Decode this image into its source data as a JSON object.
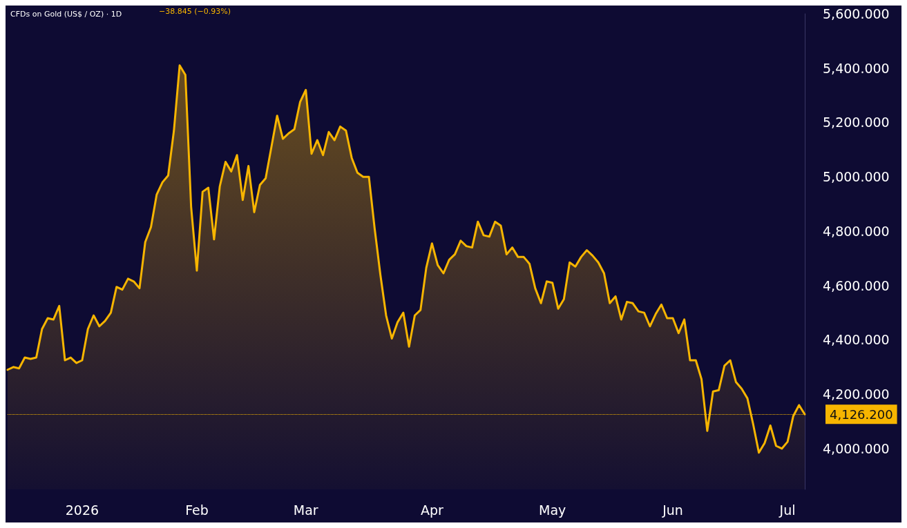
{
  "chart_data": {
    "type": "area",
    "title": "CFDs on Gold (US$ / OZ) · 1D",
    "annotations": [
      "−38.845 (−0.93%)"
    ],
    "categories": [
      null,
      null,
      null,
      null,
      null,
      null,
      null,
      null,
      null,
      null,
      null,
      null,
      null,
      "2026",
      null,
      null,
      null,
      null,
      null,
      null,
      null,
      null,
      null,
      null,
      null,
      null,
      null,
      null,
      null,
      null,
      null,
      null,
      null,
      "Feb",
      null,
      null,
      null,
      null,
      null,
      null,
      null,
      null,
      null,
      null,
      null,
      null,
      null,
      null,
      null,
      null,
      null,
      null,
      "Mar",
      null,
      null,
      null,
      null,
      null,
      null,
      null,
      null,
      null,
      null,
      null,
      null,
      null,
      null,
      null,
      null,
      null,
      null,
      null,
      null,
      null,
      "Apr",
      null,
      null,
      null,
      null,
      null,
      null,
      null,
      null,
      null,
      null,
      null,
      null,
      null,
      null,
      null,
      null,
      null,
      null,
      null,
      null,
      "May",
      null,
      null,
      null,
      null,
      null,
      null,
      null,
      null,
      null,
      null,
      null,
      null,
      null,
      null,
      null,
      null,
      null,
      null,
      null,
      null,
      "Jun",
      null,
      null,
      null,
      null,
      null,
      null,
      null,
      null,
      null,
      null,
      null,
      null,
      null,
      null,
      null,
      null,
      null,
      null,
      null,
      "Jul",
      null,
      null,
      null
    ],
    "series": [
      {
        "color": "#f7b500",
        "values": [
          4290,
          4300,
          4295,
          4335,
          4330,
          4335,
          4440,
          4480,
          4475,
          4525,
          4325,
          4335,
          4315,
          4325,
          4440,
          4490,
          4450,
          4470,
          4500,
          4595,
          4585,
          4625,
          4615,
          4590,
          4760,
          4815,
          4935,
          4980,
          5005,
          5170,
          5410,
          5375,
          4890,
          4655,
          4945,
          4960,
          4770,
          4965,
          5055,
          5020,
          5080,
          4915,
          5040,
          4870,
          4970,
          4995,
          5110,
          5225,
          5140,
          5160,
          5175,
          5275,
          5320,
          5085,
          5135,
          5080,
          5165,
          5135,
          5185,
          5170,
          5070,
          5015,
          5000,
          5000,
          4810,
          4640,
          4490,
          4405,
          4465,
          4500,
          4375,
          4490,
          4510,
          4665,
          4755,
          4675,
          4645,
          4695,
          4715,
          4765,
          4745,
          4740,
          4835,
          4785,
          4780,
          4835,
          4820,
          4715,
          4740,
          4705,
          4705,
          4680,
          4590,
          4535,
          4615,
          4610,
          4515,
          4550,
          4685,
          4670,
          4705,
          4730,
          4710,
          4685,
          4645,
          4535,
          4560,
          4475,
          4540,
          4535,
          4505,
          4500,
          4450,
          4495,
          4530,
          4480,
          4480,
          4425,
          4475,
          4325,
          4325,
          4255,
          4065,
          4210,
          4215,
          4305,
          4325,
          4245,
          4220,
          4185,
          4090,
          3985,
          4020,
          4085,
          4010,
          4000,
          4025,
          4120,
          4160,
          4126.2
        ]
      }
    ],
    "ylim": [
      3850,
      5600
    ],
    "yticks": [
      {
        "value": 4000,
        "label": "4,000.000"
      },
      {
        "value": 4200,
        "label": "4,200.000"
      },
      {
        "value": 4400,
        "label": "4,400.000"
      },
      {
        "value": 4600,
        "label": "4,600.000"
      },
      {
        "value": 4800,
        "label": "4,800.000"
      },
      {
        "value": 5000,
        "label": "5,000.000"
      },
      {
        "value": 5200,
        "label": "5,200.000"
      },
      {
        "value": 5400,
        "label": "5,400.000"
      },
      {
        "value": 5600,
        "label": "5,600.000"
      }
    ],
    "ref_lines": [
      {
        "axis": "y",
        "value": 4126.2,
        "label": "4,126.200",
        "color": "#f7b500",
        "line_style": "dotted"
      }
    ],
    "grid": false,
    "marker": "none",
    "line_style": "solid"
  }
}
